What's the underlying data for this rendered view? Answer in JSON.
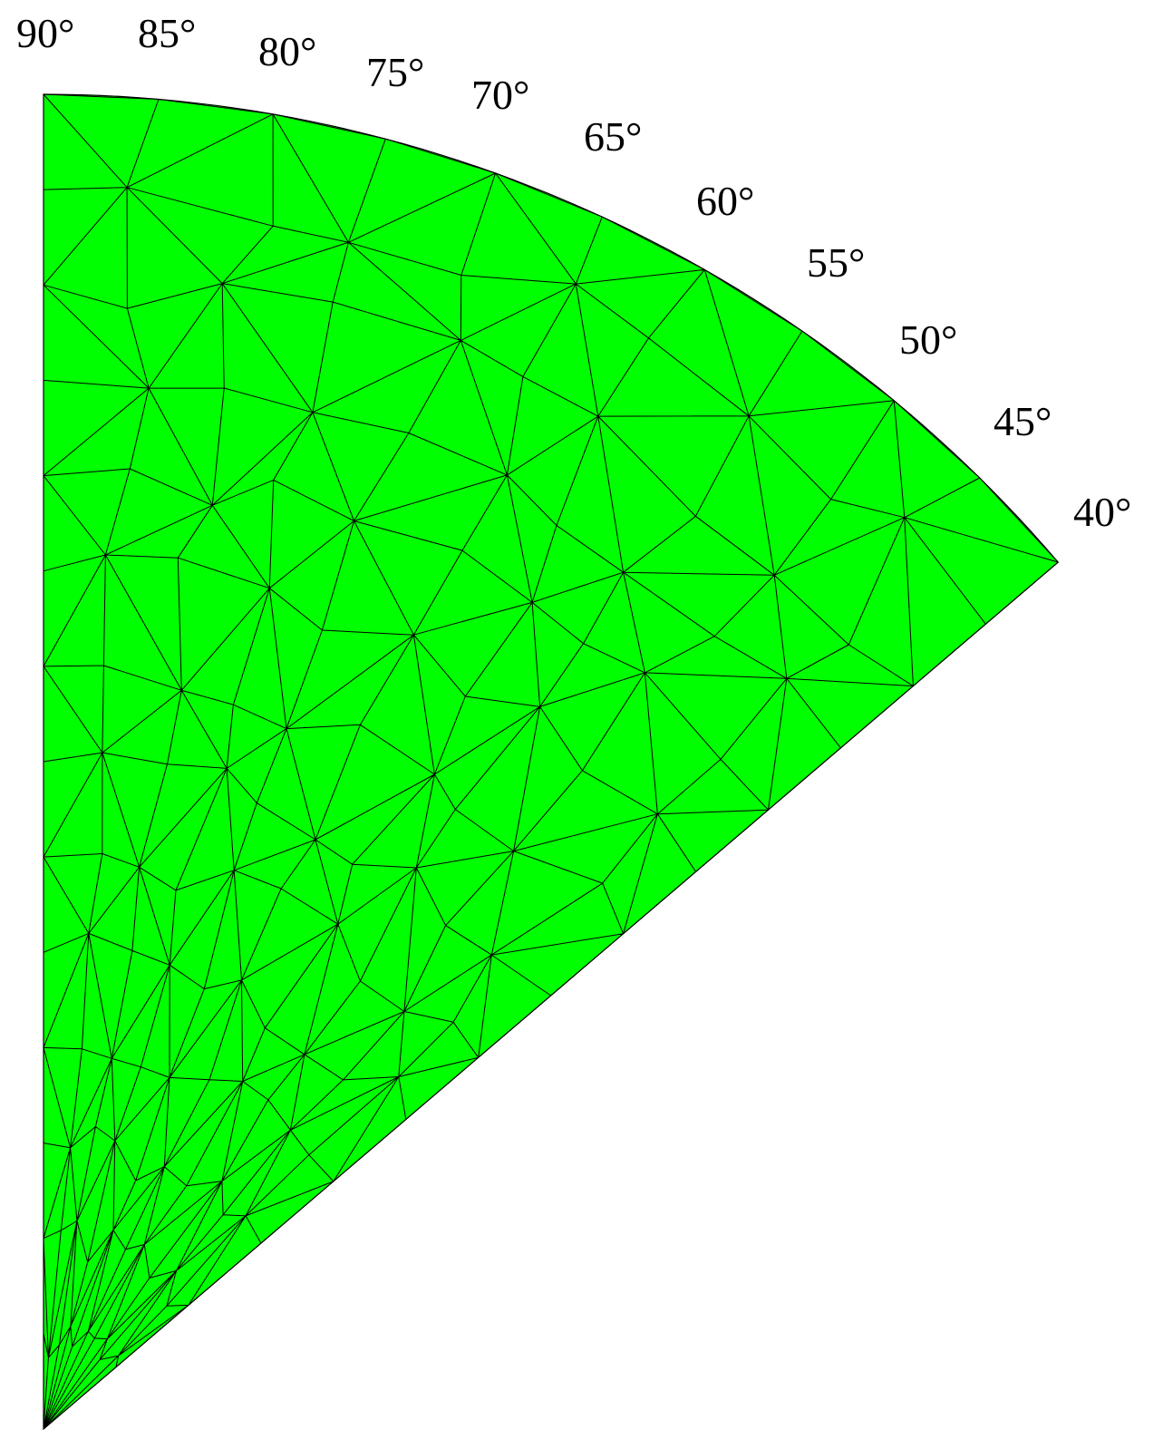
{
  "labels": [
    "90°",
    "85°",
    "80°",
    "75°",
    "70°",
    "65°",
    "60°",
    "55°",
    "50°",
    "45°",
    "40°"
  ]
}
